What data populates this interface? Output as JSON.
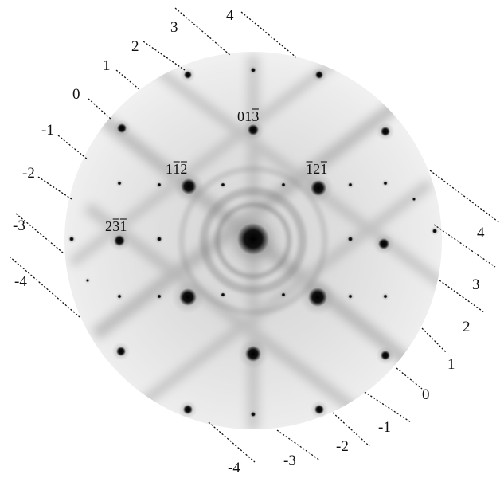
{
  "diffraction_pattern": {
    "upper_left_line_labels": [
      "4",
      "3",
      "2",
      "1",
      "0",
      "-1",
      "-2",
      "-3",
      "-4"
    ],
    "lower_right_line_labels": [
      "4",
      "3",
      "2",
      "1",
      "0",
      "-1",
      "-2",
      "-3",
      "-4"
    ],
    "reflection_labels": [
      {
        "text": "013",
        "overlines": [
          2
        ]
      },
      {
        "text": "112",
        "overlines": [
          1,
          2
        ]
      },
      {
        "text": "121",
        "overlines": [
          0,
          2
        ]
      },
      {
        "text": "231",
        "overlines": [
          1,
          2
        ]
      }
    ]
  }
}
